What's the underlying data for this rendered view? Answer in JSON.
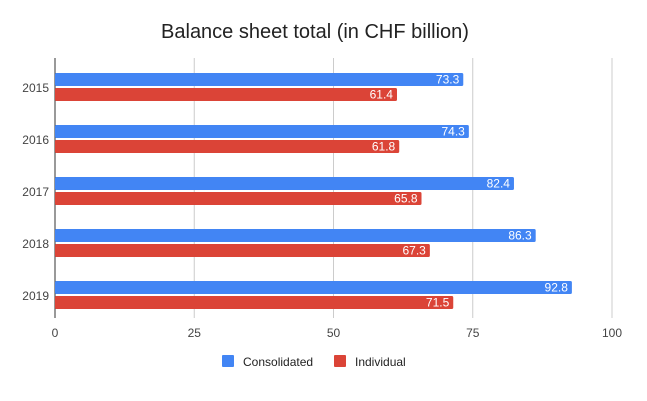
{
  "chart_data": {
    "type": "bar",
    "orientation": "horizontal",
    "title": "Balance sheet total (in CHF billion)",
    "xlabel": "",
    "ylabel": "",
    "categories": [
      "2015",
      "2016",
      "2017",
      "2018",
      "2019"
    ],
    "series": [
      {
        "name": "Consolidated",
        "color": "#4285f4",
        "values": [
          73.3,
          74.3,
          82.4,
          86.3,
          92.8
        ]
      },
      {
        "name": "Individual",
        "color": "#db4437",
        "values": [
          61.4,
          61.8,
          65.8,
          67.3,
          71.5
        ]
      }
    ],
    "xlim": [
      0,
      100
    ],
    "x_ticks": [
      "0",
      "25",
      "50",
      "75",
      "100"
    ],
    "grid": "vertical",
    "legend": "bottom"
  }
}
